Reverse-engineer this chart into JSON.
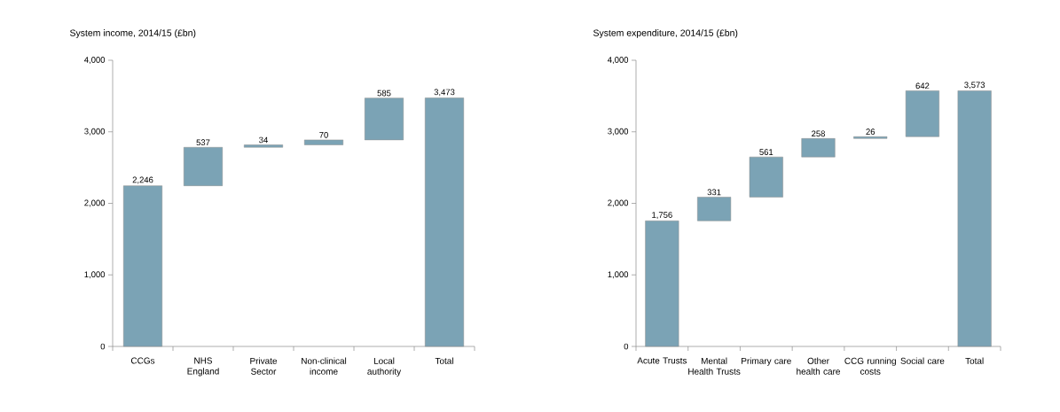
{
  "chart_data": [
    {
      "type": "bar",
      "title": "System income, 2014/15 (£bn)",
      "categories": [
        "CCGs",
        "NHS England",
        "Private Sector",
        "Non-clinical income",
        "Local authority",
        "Total"
      ],
      "values": [
        2246,
        537,
        34,
        70,
        585,
        3473
      ],
      "base": [
        0,
        2246,
        2783,
        2817,
        2887,
        0
      ],
      "value_labels": [
        "2,246",
        "537",
        "34",
        "70",
        "585",
        "3,473"
      ],
      "color": "#7ba3b5",
      "ylim": [
        0,
        4000
      ],
      "yticks": [
        0,
        {
          "value": 1000,
          "label": "1,000"
        },
        {
          "value": 2000,
          "label": "2,000"
        },
        {
          "value": 3000,
          "label": "3,000"
        },
        {
          "value": 4000,
          "label": "4,000"
        }
      ]
    },
    {
      "type": "bar",
      "title": "System expenditure, 2014/15 (£bn)",
      "categories": [
        "Acute Trusts",
        "Mental Health Trusts",
        "Primary care",
        "Other health care",
        "CCG running costs",
        "Social care",
        "Total"
      ],
      "values": [
        1756,
        331,
        561,
        258,
        26,
        642,
        3573
      ],
      "base": [
        0,
        1756,
        2087,
        2648,
        2906,
        2932,
        0
      ],
      "value_labels": [
        "1,756",
        "331",
        "561",
        "258",
        "26",
        "642",
        "3,573"
      ],
      "color": "#7ba3b5",
      "ylim": [
        0,
        4000
      ],
      "yticks": [
        0,
        {
          "value": 1000,
          "label": "1,000"
        },
        {
          "value": 2000,
          "label": "2,000"
        },
        {
          "value": 3000,
          "label": "3,000"
        },
        {
          "value": 4000,
          "label": "4,000"
        }
      ]
    }
  ]
}
